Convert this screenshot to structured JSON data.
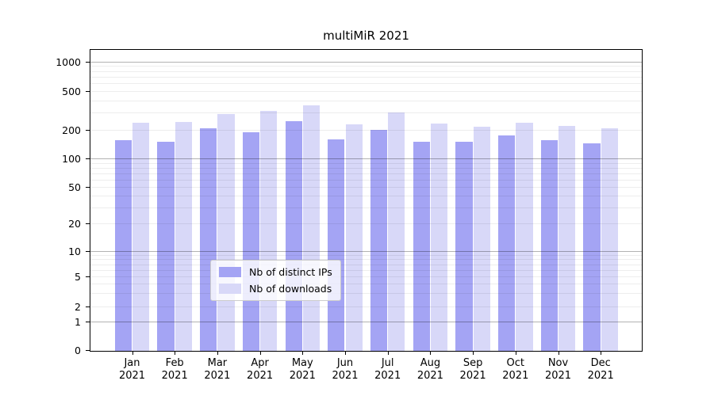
{
  "title": "multiMiR 2021",
  "chart_data": {
    "type": "bar",
    "title": "multiMiR 2021",
    "categories": [
      "Jan 2021",
      "Feb 2021",
      "Mar 2021",
      "Apr 2021",
      "May 2021",
      "Jun 2021",
      "Jul 2021",
      "Aug 2021",
      "Sep 2021",
      "Oct 2021",
      "Nov 2021",
      "Dec 2021"
    ],
    "series": [
      {
        "name": "Nb of distinct IPs",
        "color": "#a4a4f4",
        "values": [
          158,
          152,
          213,
          192,
          250,
          163,
          203,
          154,
          152,
          177,
          159,
          147
        ]
      },
      {
        "name": "Nb of downloads",
        "color": "#d8d8f8",
        "values": [
          239,
          247,
          296,
          318,
          365,
          233,
          305,
          235,
          221,
          241,
          222,
          211
        ]
      }
    ],
    "xlabel": "",
    "ylabel": "",
    "y_scale": "symlog",
    "y_ticks": [
      0,
      1,
      2,
      5,
      10,
      20,
      50,
      100,
      200,
      500,
      1000
    ],
    "ylim": [
      0,
      1350
    ],
    "grid": true,
    "legend_position": "lower center"
  }
}
